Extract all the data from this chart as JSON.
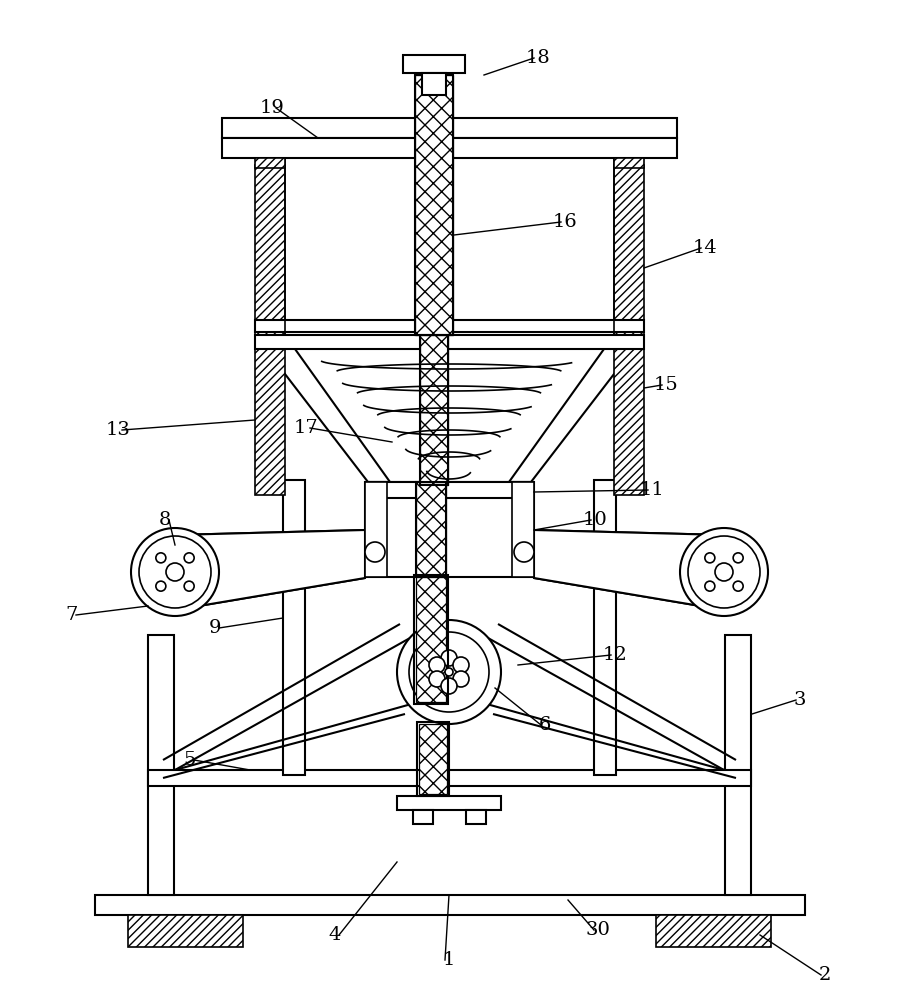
{
  "bg_color": "#ffffff",
  "line_color": "#000000",
  "fig_width": 8.99,
  "fig_height": 10.0
}
